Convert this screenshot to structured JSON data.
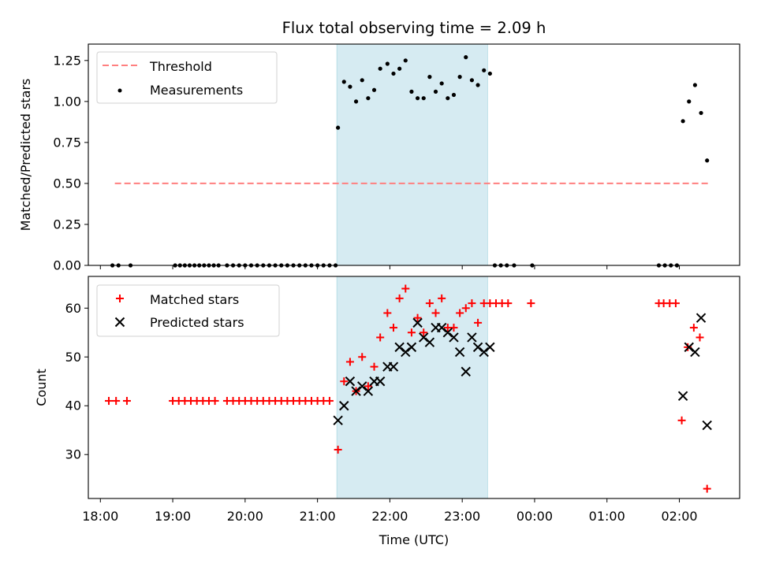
{
  "chart_data": {
    "type": "scatter",
    "title": "Flux total observing time = 2.09 h",
    "xlabel": "Time (UTC)",
    "x_ticks": [
      "18:00",
      "19:00",
      "20:00",
      "21:00",
      "22:00",
      "23:00",
      "00:00",
      "01:00",
      "02:00"
    ],
    "xlim": [
      "17:50",
      "02:50"
    ],
    "observing_window": [
      "21:16",
      "23:21"
    ],
    "colors": {
      "threshold": "#ff7f7f",
      "span": "#add8e6",
      "matched": "#ff0000",
      "predicted": "#000000",
      "measurement": "#000000"
    },
    "top": {
      "ylabel": "Matched/Predicted stars",
      "ylim": [
        0,
        1.35
      ],
      "y_ticks": [
        "0.00",
        "0.25",
        "0.50",
        "0.75",
        "1.00",
        "1.25"
      ],
      "legend_position": "upper-left",
      "threshold": {
        "name": "Threshold",
        "value": 0.5,
        "x_range": [
          "18:12",
          "02:24"
        ]
      },
      "measurements": {
        "name": "Measurements",
        "x": [
          "18:10",
          "18:15",
          "18:25",
          "19:02",
          "19:06",
          "19:10",
          "19:14",
          "19:18",
          "19:22",
          "19:26",
          "19:30",
          "19:34",
          "19:38",
          "19:45",
          "19:50",
          "19:55",
          "20:00",
          "20:05",
          "20:10",
          "20:15",
          "20:20",
          "20:25",
          "20:30",
          "20:35",
          "20:40",
          "20:45",
          "20:50",
          "20:55",
          "21:00",
          "21:05",
          "21:10",
          "21:15",
          "21:17",
          "21:22",
          "21:27",
          "21:32",
          "21:37",
          "21:42",
          "21:47",
          "21:52",
          "21:58",
          "22:03",
          "22:08",
          "22:13",
          "22:18",
          "22:23",
          "22:28",
          "22:33",
          "22:38",
          "22:43",
          "22:48",
          "22:53",
          "22:58",
          "23:03",
          "23:08",
          "23:13",
          "23:18",
          "23:23",
          "23:27",
          "23:32",
          "23:37",
          "23:43",
          "23:58",
          "01:43",
          "01:48",
          "01:53",
          "01:58",
          "02:03",
          "02:08",
          "02:13",
          "02:18",
          "02:23"
        ],
        "y": [
          0,
          0,
          0,
          0,
          0,
          0,
          0,
          0,
          0,
          0,
          0,
          0,
          0,
          0,
          0,
          0,
          0,
          0,
          0,
          0,
          0,
          0,
          0,
          0,
          0,
          0,
          0,
          0,
          0,
          0,
          0,
          0,
          0.84,
          1.12,
          1.09,
          1.0,
          1.13,
          1.02,
          1.07,
          1.2,
          1.23,
          1.17,
          1.2,
          1.25,
          1.06,
          1.02,
          1.02,
          1.15,
          1.06,
          1.11,
          1.02,
          1.04,
          1.15,
          1.27,
          1.13,
          1.1,
          1.19,
          1.17,
          0,
          0,
          0,
          0,
          0,
          0,
          0,
          0,
          0,
          0.88,
          1.0,
          1.1,
          0.93,
          0.64
        ]
      }
    },
    "bottom": {
      "ylabel": "Count",
      "ylim": [
        21,
        66.5
      ],
      "y_ticks": [
        "30",
        "40",
        "50",
        "60"
      ],
      "legend_position": "upper-left",
      "matched": {
        "name": "Matched stars",
        "x": [
          "18:07",
          "18:13",
          "18:22",
          "19:00",
          "19:05",
          "19:10",
          "19:15",
          "19:20",
          "19:25",
          "19:30",
          "19:35",
          "19:45",
          "19:50",
          "19:55",
          "20:00",
          "20:05",
          "20:10",
          "20:15",
          "20:20",
          "20:25",
          "20:30",
          "20:35",
          "20:40",
          "20:45",
          "20:50",
          "20:55",
          "21:00",
          "21:05",
          "21:10",
          "21:17",
          "21:22",
          "21:27",
          "21:32",
          "21:37",
          "21:42",
          "21:47",
          "21:52",
          "21:58",
          "22:03",
          "22:08",
          "22:13",
          "22:18",
          "22:23",
          "22:28",
          "22:33",
          "22:38",
          "22:43",
          "22:48",
          "22:53",
          "22:58",
          "23:03",
          "23:08",
          "23:13",
          "23:18",
          "23:23",
          "23:28",
          "23:33",
          "23:38",
          "23:57",
          "01:43",
          "01:47",
          "01:52",
          "01:57",
          "02:02",
          "02:07",
          "02:12",
          "02:17",
          "02:23"
        ],
        "y": [
          41,
          41,
          41,
          41,
          41,
          41,
          41,
          41,
          41,
          41,
          41,
          41,
          41,
          41,
          41,
          41,
          41,
          41,
          41,
          41,
          41,
          41,
          41,
          41,
          41,
          41,
          41,
          41,
          41,
          31,
          45,
          49,
          43,
          50,
          44,
          48,
          54,
          59,
          56,
          62,
          64,
          55,
          58,
          55,
          61,
          59,
          62,
          56,
          56,
          59,
          60,
          61,
          57,
          61,
          61,
          61,
          61,
          61,
          61,
          61,
          61,
          61,
          61,
          37,
          52,
          56,
          54,
          23
        ]
      },
      "predicted": {
        "name": "Predicted stars",
        "x": [
          "21:17",
          "21:22",
          "21:27",
          "21:32",
          "21:37",
          "21:42",
          "21:47",
          "21:52",
          "21:58",
          "22:03",
          "22:08",
          "22:13",
          "22:18",
          "22:23",
          "22:28",
          "22:33",
          "22:38",
          "22:43",
          "22:48",
          "22:53",
          "22:58",
          "23:03",
          "23:08",
          "23:13",
          "23:18",
          "23:23",
          "02:03",
          "02:08",
          "02:13",
          "02:18",
          "02:23"
        ],
        "y": [
          37,
          40,
          45,
          43,
          44,
          43,
          45,
          45,
          48,
          48,
          52,
          51,
          52,
          57,
          54,
          53,
          56,
          56,
          55,
          54,
          51,
          47,
          54,
          52,
          51,
          52,
          42,
          52,
          51,
          58,
          36
        ]
      }
    }
  }
}
